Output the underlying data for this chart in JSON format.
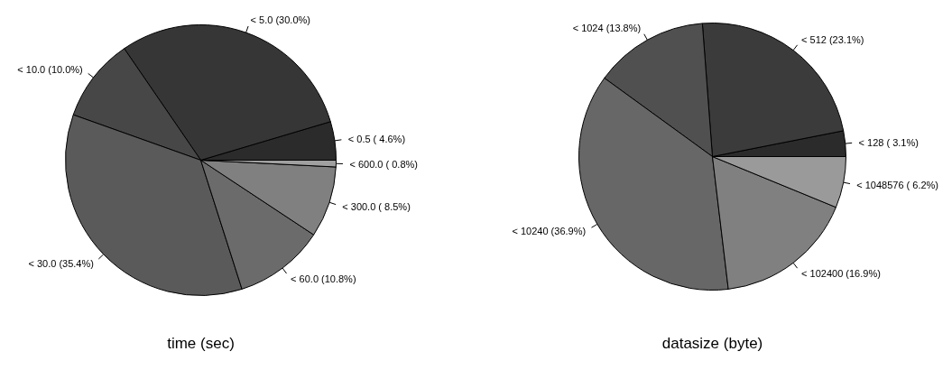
{
  "chart_data": [
    {
      "type": "pie",
      "title": "time (sec)",
      "categories": [
        "< 0.5",
        "< 5.0",
        "< 10.0",
        "< 30.0",
        "< 60.0",
        "< 300.0",
        "< 600.0"
      ],
      "values": [
        4.6,
        30.0,
        10.0,
        35.4,
        10.8,
        8.5,
        0.8
      ],
      "value_labels": [
        "( 4.6%)",
        "(30.0%)",
        "(10.0%)",
        "(35.4%)",
        "(10.8%)",
        "( 8.5%)",
        "( 0.8%)"
      ],
      "colors": [
        "#2b2b2b",
        "#363636",
        "#474747",
        "#5a5a5a",
        "#6b6b6b",
        "#808080",
        "#a0a0a0"
      ]
    },
    {
      "type": "pie",
      "title": "datasize (byte)",
      "categories": [
        "< 128",
        "< 512",
        "< 1024",
        "< 10240",
        "< 102400",
        "< 1048576"
      ],
      "values": [
        3.1,
        23.1,
        13.8,
        36.9,
        16.9,
        6.2
      ],
      "value_labels": [
        "( 3.1%)",
        "(23.1%)",
        "(13.8%)",
        "(36.9%)",
        "(16.9%)",
        "( 6.2%)"
      ],
      "colors": [
        "#2b2b2b",
        "#3b3b3b",
        "#505050",
        "#676767",
        "#808080",
        "#9a9a9a"
      ]
    }
  ]
}
